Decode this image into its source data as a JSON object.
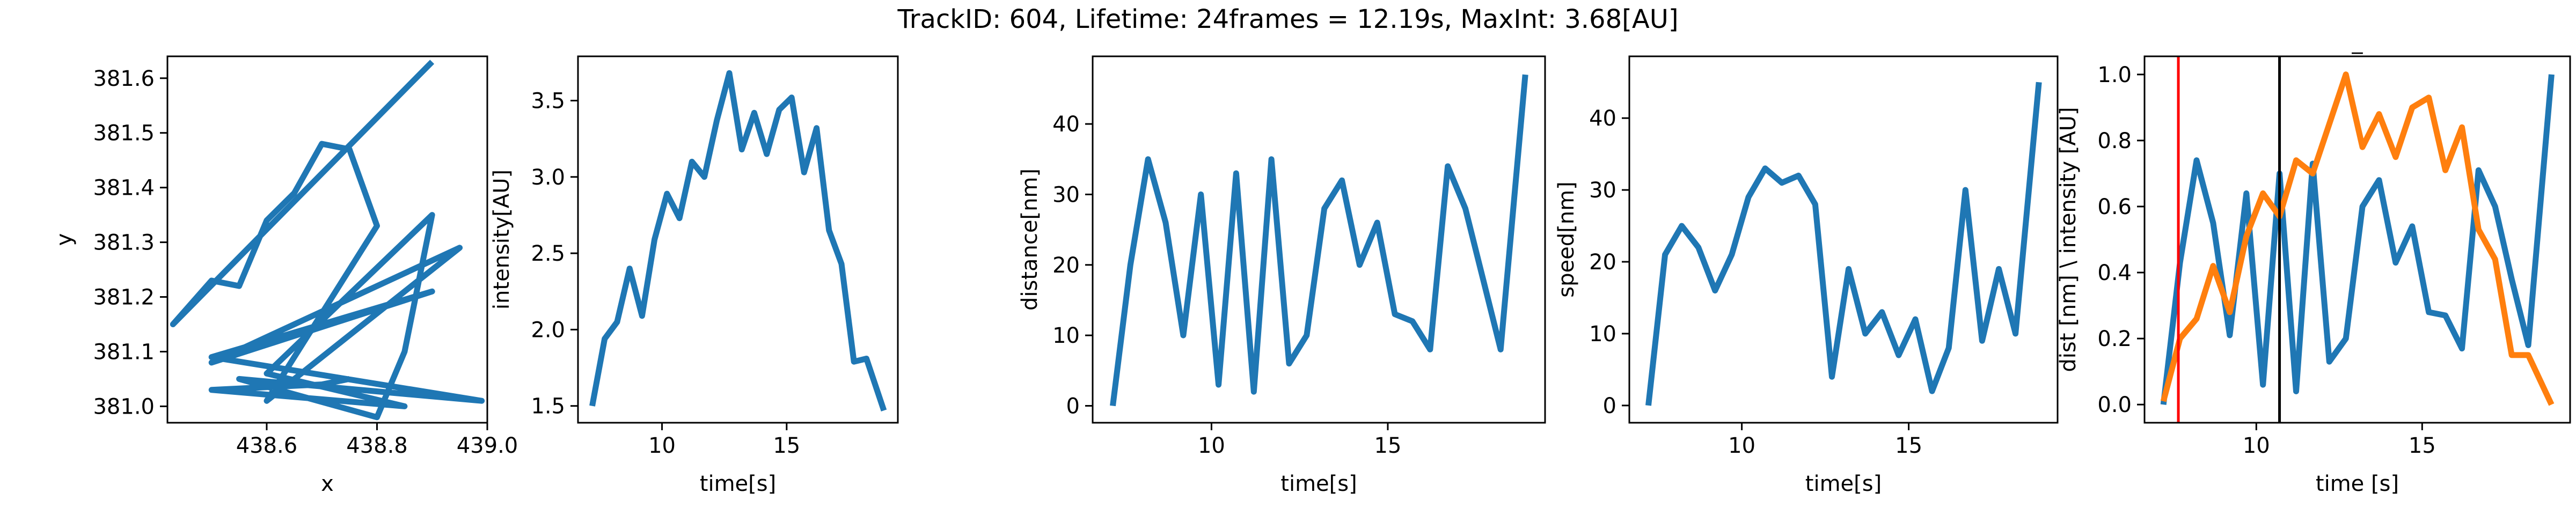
{
  "figure": {
    "title": "TrackID: 604, Lifetime: 24frames = 12.19s, MaxInt: 3.68[AU]"
  },
  "colors": {
    "blue": "#1f77b4",
    "orange": "#ff7f0e",
    "red": "#ff0000",
    "black": "#000000"
  },
  "chart_data": [
    {
      "type": "line",
      "xlabel": "x",
      "ylabel": "y",
      "xlim": [
        438.42,
        439.0
      ],
      "ylim": [
        380.97,
        381.64
      ],
      "xticks": [
        438.6,
        438.8,
        439.0
      ],
      "xtick_labels": [
        "438.6",
        "438.8",
        "439.0"
      ],
      "yticks": [
        381.0,
        381.1,
        381.2,
        381.3,
        381.4,
        381.5,
        381.6
      ],
      "ytick_labels": [
        "381.0",
        "381.1",
        "381.2",
        "381.3",
        "381.4",
        "381.5",
        "381.6"
      ],
      "series": [
        {
          "color": "#1f77b4",
          "x": [
            438.9,
            438.43,
            438.5,
            438.55,
            438.6,
            438.65,
            438.7,
            438.75,
            438.8,
            438.6,
            438.95,
            438.5,
            438.9,
            438.5,
            438.99,
            438.55,
            438.8,
            438.85,
            438.9,
            438.6,
            438.85,
            438.5,
            438.7,
            438.75
          ],
          "y": [
            381.63,
            381.15,
            381.23,
            381.22,
            381.34,
            381.39,
            381.48,
            381.47,
            381.33,
            381.01,
            381.29,
            381.08,
            381.21,
            381.09,
            381.01,
            381.05,
            380.98,
            381.1,
            381.35,
            381.06,
            381.0,
            381.03,
            381.04,
            381.05
          ]
        }
      ]
    },
    {
      "type": "line",
      "xlabel": "time[s]",
      "ylabel": "intensity[AU]",
      "xlim": [
        6.63,
        19.46
      ],
      "ylim": [
        1.39,
        3.79
      ],
      "xticks": [
        10,
        15
      ],
      "xtick_labels": [
        "10",
        "15"
      ],
      "yticks": [
        1.5,
        2.0,
        2.5,
        3.0,
        3.5
      ],
      "ytick_labels": [
        "1.5",
        "2.0",
        "2.5",
        "3.0",
        "3.5"
      ],
      "series": [
        {
          "color": "#1f77b4",
          "x": [
            7.2,
            7.7,
            8.2,
            8.7,
            9.2,
            9.7,
            10.2,
            10.7,
            11.2,
            11.7,
            12.2,
            12.7,
            13.2,
            13.7,
            14.2,
            14.7,
            15.2,
            15.7,
            16.2,
            16.7,
            17.2,
            17.7,
            18.2,
            18.9
          ],
          "y": [
            1.5,
            1.94,
            2.05,
            2.4,
            2.09,
            2.59,
            2.89,
            2.73,
            3.1,
            3.0,
            3.37,
            3.68,
            3.18,
            3.42,
            3.15,
            3.44,
            3.52,
            3.03,
            3.32,
            2.65,
            2.43,
            1.79,
            1.81,
            1.47
          ]
        }
      ]
    },
    {
      "type": "line",
      "xlabel": "time[s]",
      "ylabel": "distance[nm]",
      "xlim": [
        6.63,
        19.46
      ],
      "ylim": [
        -2.4,
        49.6
      ],
      "xticks": [
        10,
        15
      ],
      "xtick_labels": [
        "10",
        "15"
      ],
      "yticks": [
        0,
        10,
        20,
        30,
        40
      ],
      "ytick_labels": [
        "0",
        "10",
        "20",
        "30",
        "40"
      ],
      "series": [
        {
          "color": "#1f77b4",
          "x": [
            7.2,
            7.7,
            8.2,
            8.7,
            9.2,
            9.7,
            10.2,
            10.7,
            11.2,
            11.7,
            12.2,
            12.7,
            13.2,
            13.7,
            14.2,
            14.7,
            15.2,
            15.7,
            16.2,
            16.7,
            17.2,
            17.7,
            18.2,
            18.9
          ],
          "y": [
            0,
            20,
            35,
            26,
            10,
            30,
            3,
            33,
            2,
            35,
            6,
            10,
            28,
            32,
            20,
            26,
            13,
            12,
            8,
            34,
            28,
            18,
            8,
            47
          ]
        }
      ]
    },
    {
      "type": "line",
      "xlabel": "time[s]",
      "ylabel": "speed[nm]",
      "xlim": [
        6.63,
        19.46
      ],
      "ylim": [
        -2.4,
        48.6
      ],
      "xticks": [
        10,
        15
      ],
      "xtick_labels": [
        "10",
        "15"
      ],
      "yticks": [
        0,
        10,
        20,
        30,
        40
      ],
      "ytick_labels": [
        "0",
        "10",
        "20",
        "30",
        "40"
      ],
      "series": [
        {
          "color": "#1f77b4",
          "x": [
            7.2,
            7.7,
            8.2,
            8.7,
            9.2,
            9.7,
            10.2,
            10.7,
            11.2,
            11.7,
            12.2,
            12.7,
            13.2,
            13.7,
            14.2,
            14.7,
            15.2,
            15.7,
            16.2,
            16.7,
            17.2,
            17.7,
            18.2,
            18.9
          ],
          "y": [
            0,
            21,
            25,
            22,
            16,
            21,
            29,
            33,
            31,
            32,
            28,
            4,
            19,
            10,
            13,
            7,
            12,
            2,
            8,
            30,
            9,
            19,
            10,
            45
          ]
        }
      ]
    },
    {
      "type": "line",
      "title": "_",
      "xlabel": "time [s]",
      "ylabel": "dist [nm] \\ intensity [AU]",
      "xlim": [
        6.63,
        19.46
      ],
      "ylim": [
        -0.055,
        1.055
      ],
      "xticks": [
        10,
        15
      ],
      "xtick_labels": [
        "10",
        "15"
      ],
      "yticks": [
        0.0,
        0.2,
        0.4,
        0.6,
        0.8,
        1.0
      ],
      "ytick_labels": [
        "0.0",
        "0.2",
        "0.4",
        "0.6",
        "0.8",
        "1.0"
      ],
      "vlines": [
        {
          "x": 7.65,
          "color": "#ff0000"
        },
        {
          "x": 10.7,
          "color": "#000000"
        }
      ],
      "series": [
        {
          "color": "#1f77b4",
          "x": [
            7.2,
            7.7,
            8.2,
            8.7,
            9.2,
            9.7,
            10.2,
            10.7,
            11.2,
            11.7,
            12.2,
            12.7,
            13.2,
            13.7,
            14.2,
            14.7,
            15.2,
            15.7,
            16.2,
            16.7,
            17.2,
            17.7,
            18.2,
            18.9
          ],
          "y": [
            0.0,
            0.43,
            0.74,
            0.55,
            0.21,
            0.64,
            0.06,
            0.7,
            0.04,
            0.73,
            0.13,
            0.2,
            0.6,
            0.68,
            0.43,
            0.54,
            0.28,
            0.27,
            0.17,
            0.71,
            0.6,
            0.38,
            0.18,
            1.0
          ]
        },
        {
          "color": "#ff7f0e",
          "x": [
            7.2,
            7.7,
            8.2,
            8.7,
            9.2,
            9.7,
            10.2,
            10.7,
            11.2,
            11.7,
            12.2,
            12.7,
            13.2,
            13.7,
            14.2,
            14.7,
            15.2,
            15.7,
            16.2,
            16.7,
            17.2,
            17.7,
            18.2,
            18.9
          ],
          "y": [
            0.01,
            0.2,
            0.26,
            0.42,
            0.28,
            0.51,
            0.64,
            0.57,
            0.74,
            0.7,
            0.85,
            1.0,
            0.78,
            0.88,
            0.75,
            0.9,
            0.93,
            0.71,
            0.84,
            0.53,
            0.44,
            0.15,
            0.15,
            0.0
          ]
        }
      ]
    }
  ]
}
